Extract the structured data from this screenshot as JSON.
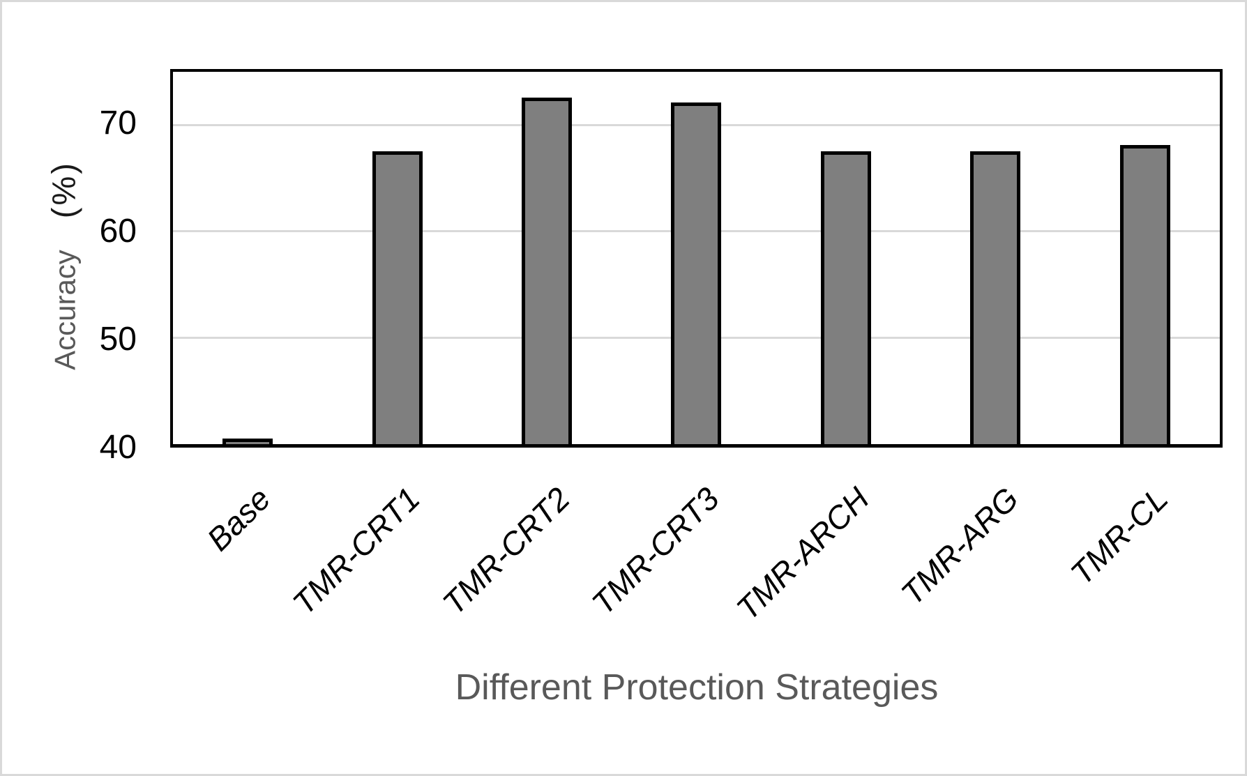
{
  "canvas": {
    "background_color": "#ffffff",
    "frame_border_color": "#d9d9d9"
  },
  "chart_data": {
    "type": "bar",
    "title": "",
    "categories": [
      "Base",
      "TMR-CRT1",
      "TMR-CRT2",
      "TMR-CRT3",
      "TMR-ARCH",
      "TMR-ARG",
      "TMR-CL"
    ],
    "values": [
      40.5,
      67.5,
      72.6,
      72.1,
      67.5,
      67.5,
      68.1
    ],
    "xlabel": "Different Protection Strategies",
    "ylabel_main": "Accuracy",
    "ylabel_unit": "(%)",
    "ylim": [
      40,
      75
    ],
    "yticks": [
      40,
      50,
      60,
      70
    ],
    "grid": true,
    "legend_position": "none",
    "bar_fill_color": "#7f7f7f",
    "bar_border_color": "#000000",
    "plot_border_color": "#000000",
    "gridline_color": "#d9d9d9",
    "tick_label_color": "#000000",
    "category_label_color": "#000000",
    "axis_title_color": "#595959",
    "ylabel_unit_color": "#1a1a1a"
  }
}
